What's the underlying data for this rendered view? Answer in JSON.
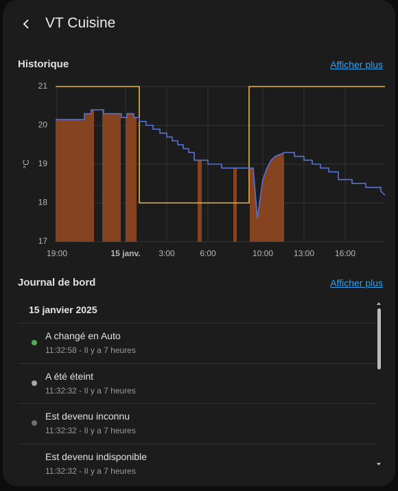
{
  "header": {
    "title": "VT Cuisine"
  },
  "history": {
    "title": "Historique",
    "link": "Afficher plus",
    "chart_data": {
      "type": "line",
      "y_label": "°C",
      "xlim": [
        -5.1,
        18.9
      ],
      "xticks": [
        {
          "value": -5,
          "label": "19:00"
        },
        {
          "value": 0,
          "label": "15 janv."
        },
        {
          "value": 3,
          "label": "3:00"
        },
        {
          "value": 6,
          "label": "6:00"
        },
        {
          "value": 10,
          "label": "10:00"
        },
        {
          "value": 13,
          "label": "13:00"
        },
        {
          "value": 16,
          "label": "16:00"
        }
      ],
      "ylim": [
        17,
        21
      ],
      "yticks": [
        17,
        18,
        19,
        20,
        21
      ],
      "grid": true,
      "series": [
        {
          "color": "#f0b63c",
          "x": [
            -5.1,
            1.0,
            1.0,
            9.0,
            9.0,
            18.9
          ],
          "values": [
            21,
            21,
            18,
            18,
            21,
            21
          ]
        },
        {
          "color": "#5673d6",
          "x": [
            -5.1,
            -3.0,
            -3.0,
            -2.5,
            -2.5,
            -1.6,
            -1.6,
            -0.3,
            -0.3,
            0.1,
            0.1,
            0.6,
            0.6,
            1.0,
            1.0,
            1.5,
            1.5,
            2.0,
            2.0,
            2.5,
            2.5,
            3.0,
            3.0,
            3.4,
            3.4,
            3.8,
            3.8,
            4.2,
            4.2,
            4.6,
            4.6,
            5.0,
            5.0,
            6.0,
            6.0,
            7.0,
            7.0,
            9.3,
            9.6,
            10.0,
            10.3,
            10.6,
            10.9,
            11.6,
            12.3,
            12.3,
            13.0,
            13.0,
            13.6,
            13.6,
            14.2,
            14.2,
            14.8,
            14.8,
            15.5,
            15.5,
            16.5,
            16.5,
            17.5,
            17.5,
            18.6,
            18.6,
            18.9
          ],
          "values": [
            20.15,
            20.15,
            20.3,
            20.3,
            20.4,
            20.4,
            20.3,
            20.3,
            20.2,
            20.2,
            20.3,
            20.3,
            20.2,
            20.2,
            20.1,
            20.1,
            20.0,
            20.0,
            19.9,
            19.9,
            19.8,
            19.8,
            19.7,
            19.7,
            19.6,
            19.6,
            19.5,
            19.5,
            19.4,
            19.4,
            19.3,
            19.3,
            19.1,
            19.1,
            19.0,
            19.0,
            18.9,
            18.9,
            17.6,
            18.6,
            18.9,
            19.1,
            19.2,
            19.3,
            19.3,
            19.2,
            19.2,
            19.1,
            19.1,
            19.0,
            19.0,
            18.9,
            18.9,
            18.8,
            18.8,
            18.6,
            18.6,
            18.5,
            18.5,
            18.4,
            18.4,
            18.3,
            18.2
          ]
        }
      ],
      "heating": {
        "color": "#8c4621",
        "intervals": [
          [
            -5.1,
            -2.3
          ],
          [
            -1.7,
            -0.35
          ],
          [
            0.0,
            0.8
          ],
          [
            5.25,
            5.55
          ],
          [
            7.85,
            8.1
          ],
          [
            9.05,
            11.55
          ]
        ]
      }
    }
  },
  "logbook": {
    "title": "Journal de bord",
    "link": "Afficher plus",
    "date": "15 janvier 2025",
    "entries": [
      {
        "message": "A changé en Auto",
        "time": "11:32:58 - Il y a 7 heures",
        "dot_color": "#4caf50"
      },
      {
        "message": "A été éteint",
        "time": "11:32:32 - Il y a 7 heures",
        "dot_color": "#a8a8a8"
      },
      {
        "message": "Est devenu inconnu",
        "time": "11:32:32 - Il y a 7 heures",
        "dot_color": "#6f6f6f"
      },
      {
        "message": "Est devenu indisponible",
        "time": "11:32:32 - Il y a 7 heures"
      }
    ]
  }
}
